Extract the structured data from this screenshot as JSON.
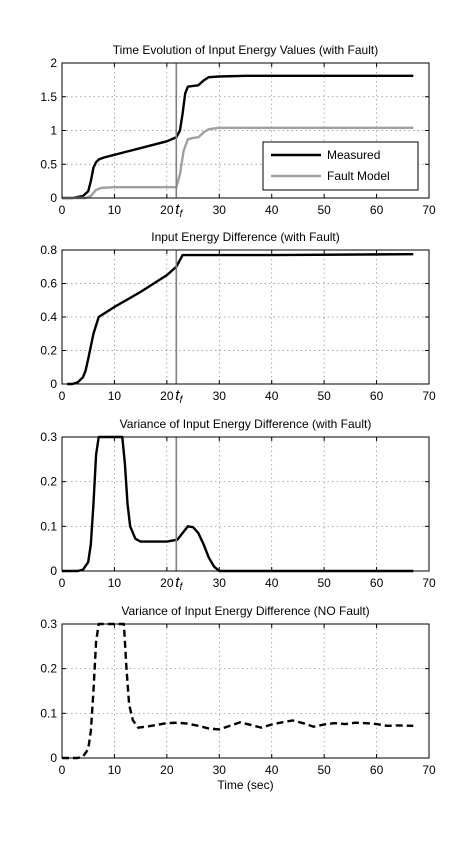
{
  "chart_data": [
    {
      "type": "line",
      "title": "Time Evolution of Input Energy Values (with Fault)",
      "xlabel": "",
      "ylabel": "",
      "xlim": [
        0,
        70
      ],
      "ylim": [
        0,
        2
      ],
      "xticks": [
        0,
        10,
        20,
        30,
        40,
        50,
        60,
        70
      ],
      "yticks": [
        0,
        0.5,
        1,
        1.5,
        2
      ],
      "grid": true,
      "legend": "lower-right",
      "fault_time": 21.8,
      "fault_label": "t",
      "fault_subscript": "f",
      "series": [
        {
          "name": "Measured",
          "color": "#000000",
          "dash": "solid",
          "x": [
            0,
            2,
            4,
            5,
            5.5,
            6,
            6.5,
            7,
            8,
            10,
            15,
            20,
            21.8,
            22.5,
            23,
            23.5,
            24,
            25,
            26,
            27,
            28,
            30,
            35,
            67
          ],
          "y": [
            0,
            0,
            0.03,
            0.1,
            0.25,
            0.45,
            0.53,
            0.57,
            0.6,
            0.64,
            0.74,
            0.84,
            0.9,
            1.0,
            1.25,
            1.55,
            1.65,
            1.66,
            1.67,
            1.74,
            1.79,
            1.8,
            1.81,
            1.81
          ]
        },
        {
          "name": "Fault Model",
          "color": "#a0a0a0",
          "dash": "solid",
          "x": [
            0,
            4.5,
            5.5,
            6.5,
            7.5,
            10,
            21.8,
            22.5,
            23.2,
            24,
            25,
            26,
            27,
            28,
            30,
            35,
            67
          ],
          "y": [
            0,
            0,
            0.03,
            0.12,
            0.15,
            0.16,
            0.16,
            0.35,
            0.7,
            0.87,
            0.89,
            0.9,
            0.97,
            1.02,
            1.04,
            1.04,
            1.04
          ]
        }
      ]
    },
    {
      "type": "line",
      "title": "Input Energy Difference (with Fault)",
      "xlabel": "",
      "ylabel": "",
      "xlim": [
        0,
        70
      ],
      "ylim": [
        0,
        0.8
      ],
      "xticks": [
        0,
        10,
        20,
        30,
        40,
        50,
        60,
        70
      ],
      "yticks": [
        0,
        0.2,
        0.4,
        0.6,
        0.8
      ],
      "grid": true,
      "fault_time": 21.8,
      "fault_label": "t",
      "fault_subscript": "f",
      "series": [
        {
          "name": "",
          "color": "#000000",
          "dash": "solid",
          "x": [
            1,
            2,
            3,
            4,
            4.5,
            5,
            6,
            7,
            8,
            10,
            15,
            20,
            21.8,
            22.5,
            23,
            24,
            30,
            40,
            67
          ],
          "y": [
            0,
            0,
            0.01,
            0.04,
            0.08,
            0.15,
            0.3,
            0.4,
            0.42,
            0.46,
            0.55,
            0.65,
            0.7,
            0.74,
            0.77,
            0.77,
            0.77,
            0.77,
            0.775
          ]
        }
      ]
    },
    {
      "type": "line",
      "title": "Variance of Input Energy Difference (with Fault)",
      "xlabel": "",
      "ylabel": "",
      "xlim": [
        0,
        70
      ],
      "ylim": [
        0,
        0.3
      ],
      "xticks": [
        0,
        10,
        20,
        30,
        40,
        50,
        60,
        70
      ],
      "yticks": [
        0,
        0.1,
        0.2,
        0.3
      ],
      "grid": true,
      "fault_time": 21.8,
      "fault_label": "t",
      "fault_subscript": "f",
      "series": [
        {
          "name": "",
          "color": "#000000",
          "dash": "solid",
          "x": [
            0,
            3,
            4,
            5,
            5.5,
            6,
            6.5,
            7,
            11.5,
            12,
            12.5,
            13,
            14,
            15,
            17,
            20,
            22,
            23,
            24,
            25,
            26,
            27,
            28,
            29,
            30,
            67
          ],
          "y": [
            0,
            0,
            0.003,
            0.02,
            0.06,
            0.15,
            0.26,
            0.3,
            0.3,
            0.24,
            0.15,
            0.1,
            0.072,
            0.066,
            0.066,
            0.066,
            0.07,
            0.085,
            0.1,
            0.098,
            0.085,
            0.06,
            0.03,
            0.01,
            0,
            0
          ]
        }
      ]
    },
    {
      "type": "line",
      "title": "Variance of Input Energy Difference (NO Fault)",
      "xlabel": "Time (sec)",
      "ylabel": "",
      "xlim": [
        0,
        70
      ],
      "ylim": [
        0,
        0.3
      ],
      "xticks": [
        0,
        10,
        20,
        30,
        40,
        50,
        60,
        70
      ],
      "yticks": [
        0,
        0.1,
        0.2,
        0.3
      ],
      "grid": true,
      "series": [
        {
          "name": "",
          "color": "#000000",
          "dash": "dashed",
          "x": [
            0,
            3,
            4,
            5,
            5.5,
            6,
            6.5,
            7,
            11.8,
            12.3,
            12.8,
            13.5,
            14.5,
            16,
            18,
            20,
            22,
            24,
            26,
            28,
            30,
            32,
            34,
            36,
            38,
            40,
            42,
            44,
            46,
            48,
            50,
            52,
            54,
            56,
            58,
            60,
            62,
            64,
            67
          ],
          "y": [
            0,
            0,
            0.003,
            0.02,
            0.06,
            0.15,
            0.26,
            0.3,
            0.3,
            0.2,
            0.12,
            0.085,
            0.068,
            0.07,
            0.074,
            0.078,
            0.079,
            0.077,
            0.072,
            0.066,
            0.064,
            0.072,
            0.08,
            0.074,
            0.068,
            0.075,
            0.08,
            0.084,
            0.078,
            0.07,
            0.075,
            0.078,
            0.076,
            0.079,
            0.078,
            0.076,
            0.072,
            0.073,
            0.072
          ]
        }
      ]
    }
  ]
}
